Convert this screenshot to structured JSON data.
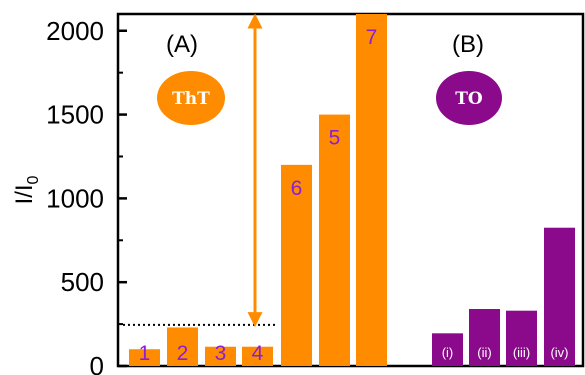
{
  "chart_data": {
    "type": "bar",
    "ylabel": "I/I0",
    "ylim": [
      0,
      2100
    ],
    "yticks": [
      0,
      500,
      1000,
      1500,
      2000
    ],
    "ytick_labels": [
      "0",
      "500",
      "1000",
      "1500",
      "2000"
    ],
    "panels": [
      {
        "label": "(A)",
        "dye": "ThT",
        "color": "#ff8c00"
      },
      {
        "label": "(B)",
        "dye": "TO",
        "color": "#8b0a8b"
      }
    ],
    "series": [
      {
        "panel": "(A)",
        "categories": [
          "1",
          "2",
          "3",
          "4",
          "",
          "6",
          "5",
          "7"
        ],
        "values": [
          100,
          230,
          115,
          115,
          115,
          1200,
          1500,
          2100
        ]
      },
      {
        "panel": "(B)",
        "categories": [
          "(i)",
          "(ii)",
          "(iii)",
          "(iv)"
        ],
        "values": [
          195,
          340,
          330,
          825
        ]
      }
    ],
    "reference_line": {
      "y": 245,
      "style": "dotted",
      "panel": "(A)"
    },
    "arrow": {
      "from": 250,
      "to": 2085,
      "double_headed": true,
      "panel": "(A)"
    }
  }
}
